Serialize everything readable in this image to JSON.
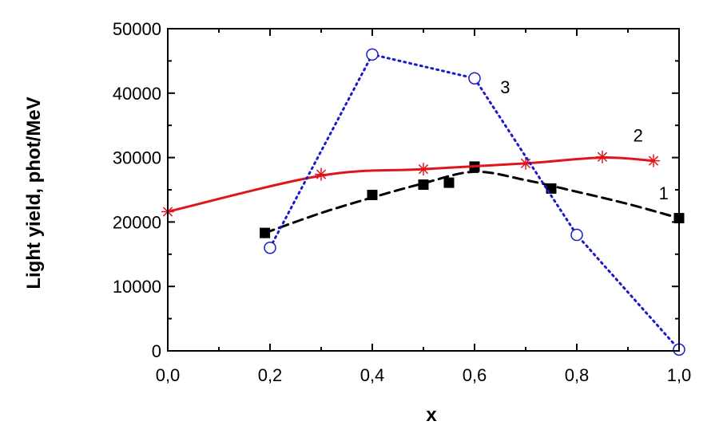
{
  "chart_data": {
    "type": "line",
    "xlabel": "x",
    "ylabel": "Light yield, phot/MeV",
    "xlim": [
      0.0,
      1.0
    ],
    "ylim": [
      0,
      50000
    ],
    "x_ticks": [
      "0,0",
      "0,2",
      "0,4",
      "0,6",
      "0,8",
      "1,0"
    ],
    "x_tick_values": [
      0.0,
      0.2,
      0.4,
      0.6,
      0.8,
      1.0
    ],
    "y_ticks": [
      "0",
      "10000",
      "20000",
      "30000",
      "40000",
      "50000"
    ],
    "y_tick_values": [
      0,
      10000,
      20000,
      30000,
      40000,
      50000
    ],
    "grid": false,
    "legend": "none",
    "series": [
      {
        "label": "1",
        "marker": "filled-square",
        "marker_color": "#000000",
        "line_style": "dashed",
        "line_color": "#000000",
        "points": [
          [
            0.19,
            18300
          ],
          [
            0.4,
            24200
          ],
          [
            0.5,
            25800
          ],
          [
            0.55,
            26100
          ],
          [
            0.6,
            28600
          ],
          [
            0.75,
            25200
          ],
          [
            1.0,
            20600
          ]
        ],
        "fit": [
          [
            0.19,
            18300
          ],
          [
            0.3,
            21400
          ],
          [
            0.4,
            23800
          ],
          [
            0.5,
            26000
          ],
          [
            0.6,
            27800
          ],
          [
            0.7,
            26500
          ],
          [
            0.8,
            24700
          ],
          [
            0.9,
            22800
          ],
          [
            1.0,
            20600
          ]
        ]
      },
      {
        "label": "2",
        "marker": "asterisk",
        "marker_color": "#e0151b",
        "line_style": "solid",
        "line_color": "#e0151b",
        "points": [
          [
            0.0,
            21600
          ],
          [
            0.3,
            27400
          ],
          [
            0.5,
            28200
          ],
          [
            0.7,
            29100
          ],
          [
            0.85,
            30100
          ],
          [
            0.95,
            29500
          ]
        ],
        "fit": [
          [
            0.0,
            21600
          ],
          [
            0.3,
            27200
          ],
          [
            0.5,
            28200
          ],
          [
            0.7,
            29100
          ],
          [
            0.85,
            30000
          ],
          [
            0.95,
            29500
          ]
        ]
      },
      {
        "label": "3",
        "marker": "open-circle",
        "marker_color": "#1a1acc",
        "line_style": "dotted",
        "line_color": "#1a1acc",
        "points": [
          [
            0.2,
            16000
          ],
          [
            0.4,
            46000
          ],
          [
            0.6,
            42300
          ],
          [
            0.8,
            18000
          ],
          [
            1.0,
            200
          ]
        ],
        "fit": [
          [
            0.2,
            16000
          ],
          [
            0.4,
            46000
          ],
          [
            0.6,
            42300
          ],
          [
            0.8,
            18000
          ],
          [
            1.0,
            200
          ]
        ]
      }
    ]
  }
}
